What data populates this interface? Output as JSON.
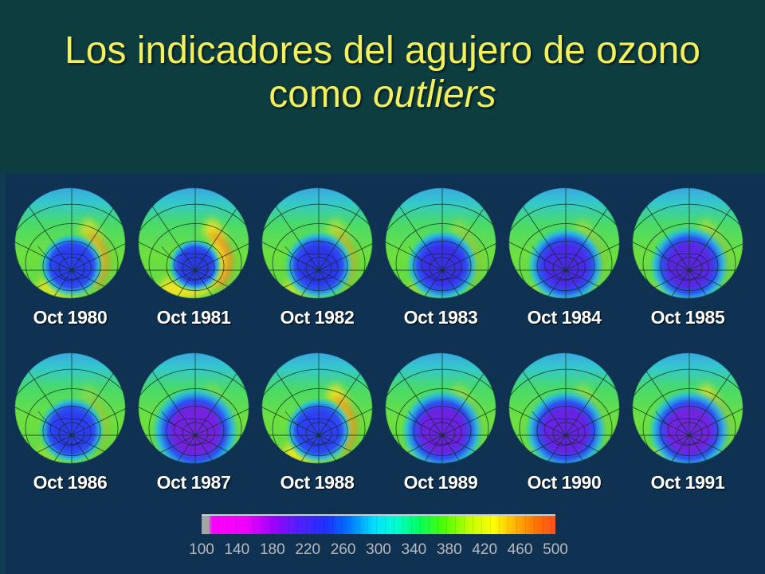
{
  "title": {
    "line1": "Los indicadores del agujero de ozono",
    "line2_word1": "como",
    "line2_word2": "outliers"
  },
  "colors": {
    "title": "#f4f05a",
    "header_bg": "#0d3d3f",
    "panel_bg": "#0f3152",
    "map_label": "#ffffff",
    "scale_tick": "#bababa"
  },
  "maps": [
    {
      "label": "Oct 1980",
      "hole_color": "#2c3cf0"
    },
    {
      "label": "Oct 1981",
      "hole_color": "#2c3ae8"
    },
    {
      "label": "Oct 1982",
      "hole_color": "#2e36ea"
    },
    {
      "label": "Oct 1983",
      "hole_color": "#3a2ee8"
    },
    {
      "label": "Oct 1984",
      "hole_color": "#4a2ae6"
    },
    {
      "label": "Oct 1985",
      "hole_color": "#5a26e2"
    },
    {
      "label": "Oct 1986",
      "hole_color": "#2e3cf0"
    },
    {
      "label": "Oct 1987",
      "hole_color": "#7422de"
    },
    {
      "label": "Oct 1988",
      "hole_color": "#2e3ef0"
    },
    {
      "label": "Oct 1989",
      "hole_color": "#6c22e0"
    },
    {
      "label": "Oct 1990",
      "hole_color": "#6624e2"
    },
    {
      "label": "Oct 1991",
      "hole_color": "#7024de"
    }
  ],
  "scale": {
    "min": 100,
    "max": 500,
    "ticks": [
      100,
      140,
      180,
      220,
      260,
      300,
      340,
      380,
      420,
      460,
      500
    ],
    "stops": [
      {
        "value": 100,
        "color": "#a4a4a4"
      },
      {
        "value": 108,
        "color": "#a4a4a4"
      },
      {
        "value": 112,
        "color": "#ff00ff"
      },
      {
        "value": 150,
        "color": "#f000ff"
      },
      {
        "value": 180,
        "color": "#a000ff"
      },
      {
        "value": 210,
        "color": "#5020ff"
      },
      {
        "value": 240,
        "color": "#2030ff"
      },
      {
        "value": 265,
        "color": "#0070ff"
      },
      {
        "value": 295,
        "color": "#00e0ff"
      },
      {
        "value": 320,
        "color": "#00ffd0"
      },
      {
        "value": 345,
        "color": "#00ff60"
      },
      {
        "value": 375,
        "color": "#50ff00"
      },
      {
        "value": 405,
        "color": "#c8ff00"
      },
      {
        "value": 430,
        "color": "#ffff00"
      },
      {
        "value": 455,
        "color": "#ffb000"
      },
      {
        "value": 480,
        "color": "#ff7000"
      },
      {
        "value": 500,
        "color": "#ff5020"
      }
    ]
  }
}
